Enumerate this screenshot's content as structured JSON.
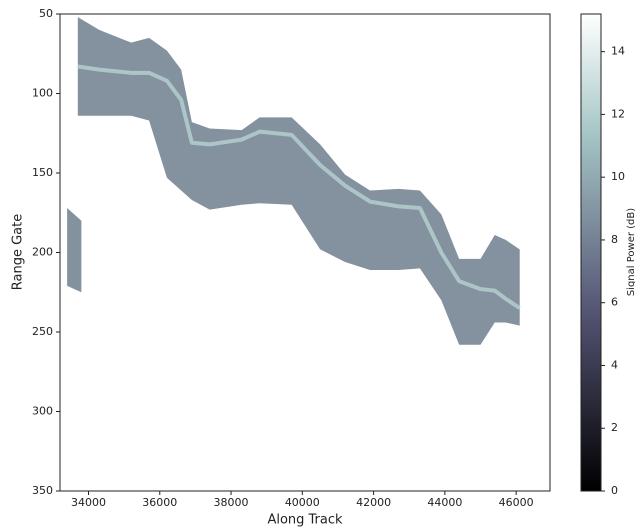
{
  "chart_data": {
    "type": "swath",
    "xlabel": "Along Track",
    "ylabel": "Range Gate",
    "colorbar_label": "Signal Power (dB)",
    "xlim": [
      33200,
      46950
    ],
    "xticks": [
      34000,
      36000,
      38000,
      40000,
      42000,
      44000,
      46000
    ],
    "ylim": [
      50,
      350
    ],
    "y_inverted": true,
    "yticks": [
      50,
      100,
      150,
      200,
      250,
      300,
      350
    ],
    "clim": [
      0,
      15.2
    ],
    "cticks": [
      0,
      2,
      4,
      6,
      8,
      10,
      12,
      14
    ],
    "colormap": "bone",
    "swaths": [
      {
        "color": "#7d8b9a",
        "x": [
          33400,
          33800
        ],
        "top": [
          172,
          180
        ],
        "bottom": [
          221,
          225
        ]
      },
      {
        "color": "#7d8b9a",
        "x": [
          33700,
          34300,
          35200,
          35700,
          36200,
          36600,
          36900,
          37400,
          38300,
          38800,
          39700,
          40500,
          41200,
          41900,
          42700,
          43300,
          43900,
          44400,
          45000,
          45400,
          45700,
          46100
        ],
        "top": [
          52,
          60,
          68,
          65,
          73,
          85,
          118,
          122,
          123,
          115,
          115,
          132,
          151,
          161,
          160,
          161,
          176,
          204,
          204,
          189,
          192,
          198
        ],
        "bottom": [
          114,
          114,
          114,
          117,
          153,
          161,
          167,
          173,
          170,
          169,
          170,
          198,
          206,
          211,
          211,
          210,
          230,
          258,
          258,
          244,
          244,
          246
        ]
      }
    ],
    "bright_line": {
      "color": "#b6d3d1",
      "x": [
        33700,
        34300,
        35200,
        35700,
        36200,
        36600,
        36900,
        37400,
        38300,
        38800,
        39700,
        40500,
        41200,
        41900,
        42700,
        43300,
        43900,
        44400,
        45000,
        45400,
        45700,
        46100
      ],
      "values": [
        83,
        85,
        87,
        87,
        92,
        104,
        131,
        132,
        129,
        124,
        126,
        145,
        158,
        168,
        171,
        172,
        200,
        218,
        223,
        224,
        229,
        235
      ]
    }
  }
}
